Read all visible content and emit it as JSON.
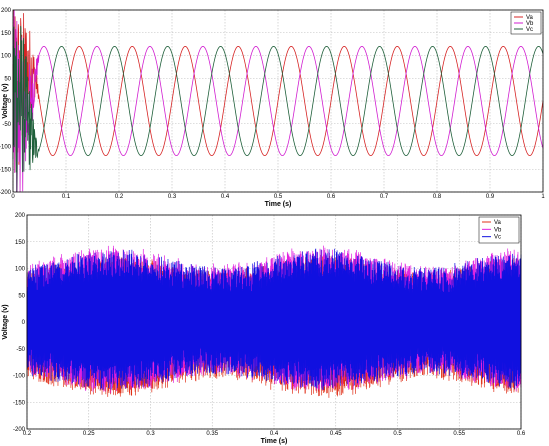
{
  "chart_data": [
    {
      "type": "line",
      "title": "",
      "xlabel": "Time (s)",
      "ylabel": "Voltage (v)",
      "xlim": [
        0,
        1
      ],
      "ylim": [
        -200,
        200
      ],
      "xticks": [
        "0",
        "0.1",
        "0.2",
        "0.3",
        "0.4",
        "0.5",
        "0.6",
        "0.7",
        "0.8",
        "0.9",
        "1"
      ],
      "yticks": [
        "200",
        "150",
        "100",
        "50",
        "0",
        "-50",
        "-100",
        "-150",
        "-200"
      ],
      "grid": true,
      "legend_position": "top-right",
      "waveform": {
        "amplitude": 120,
        "frequency_hz": 10,
        "phase_shift_deg": 120,
        "transient_until_s": 0.05
      },
      "series": [
        {
          "name": "Va",
          "color": "#d62424",
          "phase_deg": 0
        },
        {
          "name": "Vb",
          "color": "#d11fd1",
          "phase_deg": -120
        },
        {
          "name": "Vc",
          "color": "#1f5f3a",
          "phase_deg": 120
        }
      ]
    },
    {
      "type": "line",
      "title": "",
      "xlabel": "Time (s)",
      "ylabel": "Voltage (v)",
      "xlim": [
        0.2,
        0.6
      ],
      "ylim": [
        -200,
        200
      ],
      "xticks": [
        "0.2",
        "0.25",
        "0.3",
        "0.35",
        "0.4",
        "0.45",
        "0.5",
        "0.55",
        "0.6"
      ],
      "yticks": [
        "200",
        "150",
        "100",
        "50",
        "0",
        "-50",
        "-100",
        "-150",
        "-200"
      ],
      "grid": true,
      "legend_position": "top-right",
      "waveform": {
        "amplitude_min": 85,
        "amplitude_max": 120,
        "envelope_peaks_s": [
          0.27,
          0.44
        ]
      },
      "series": [
        {
          "name": "Va",
          "color": "#e03018"
        },
        {
          "name": "Vb",
          "color": "#e020e0"
        },
        {
          "name": "Vc",
          "color": "#1010e0"
        }
      ]
    }
  ]
}
